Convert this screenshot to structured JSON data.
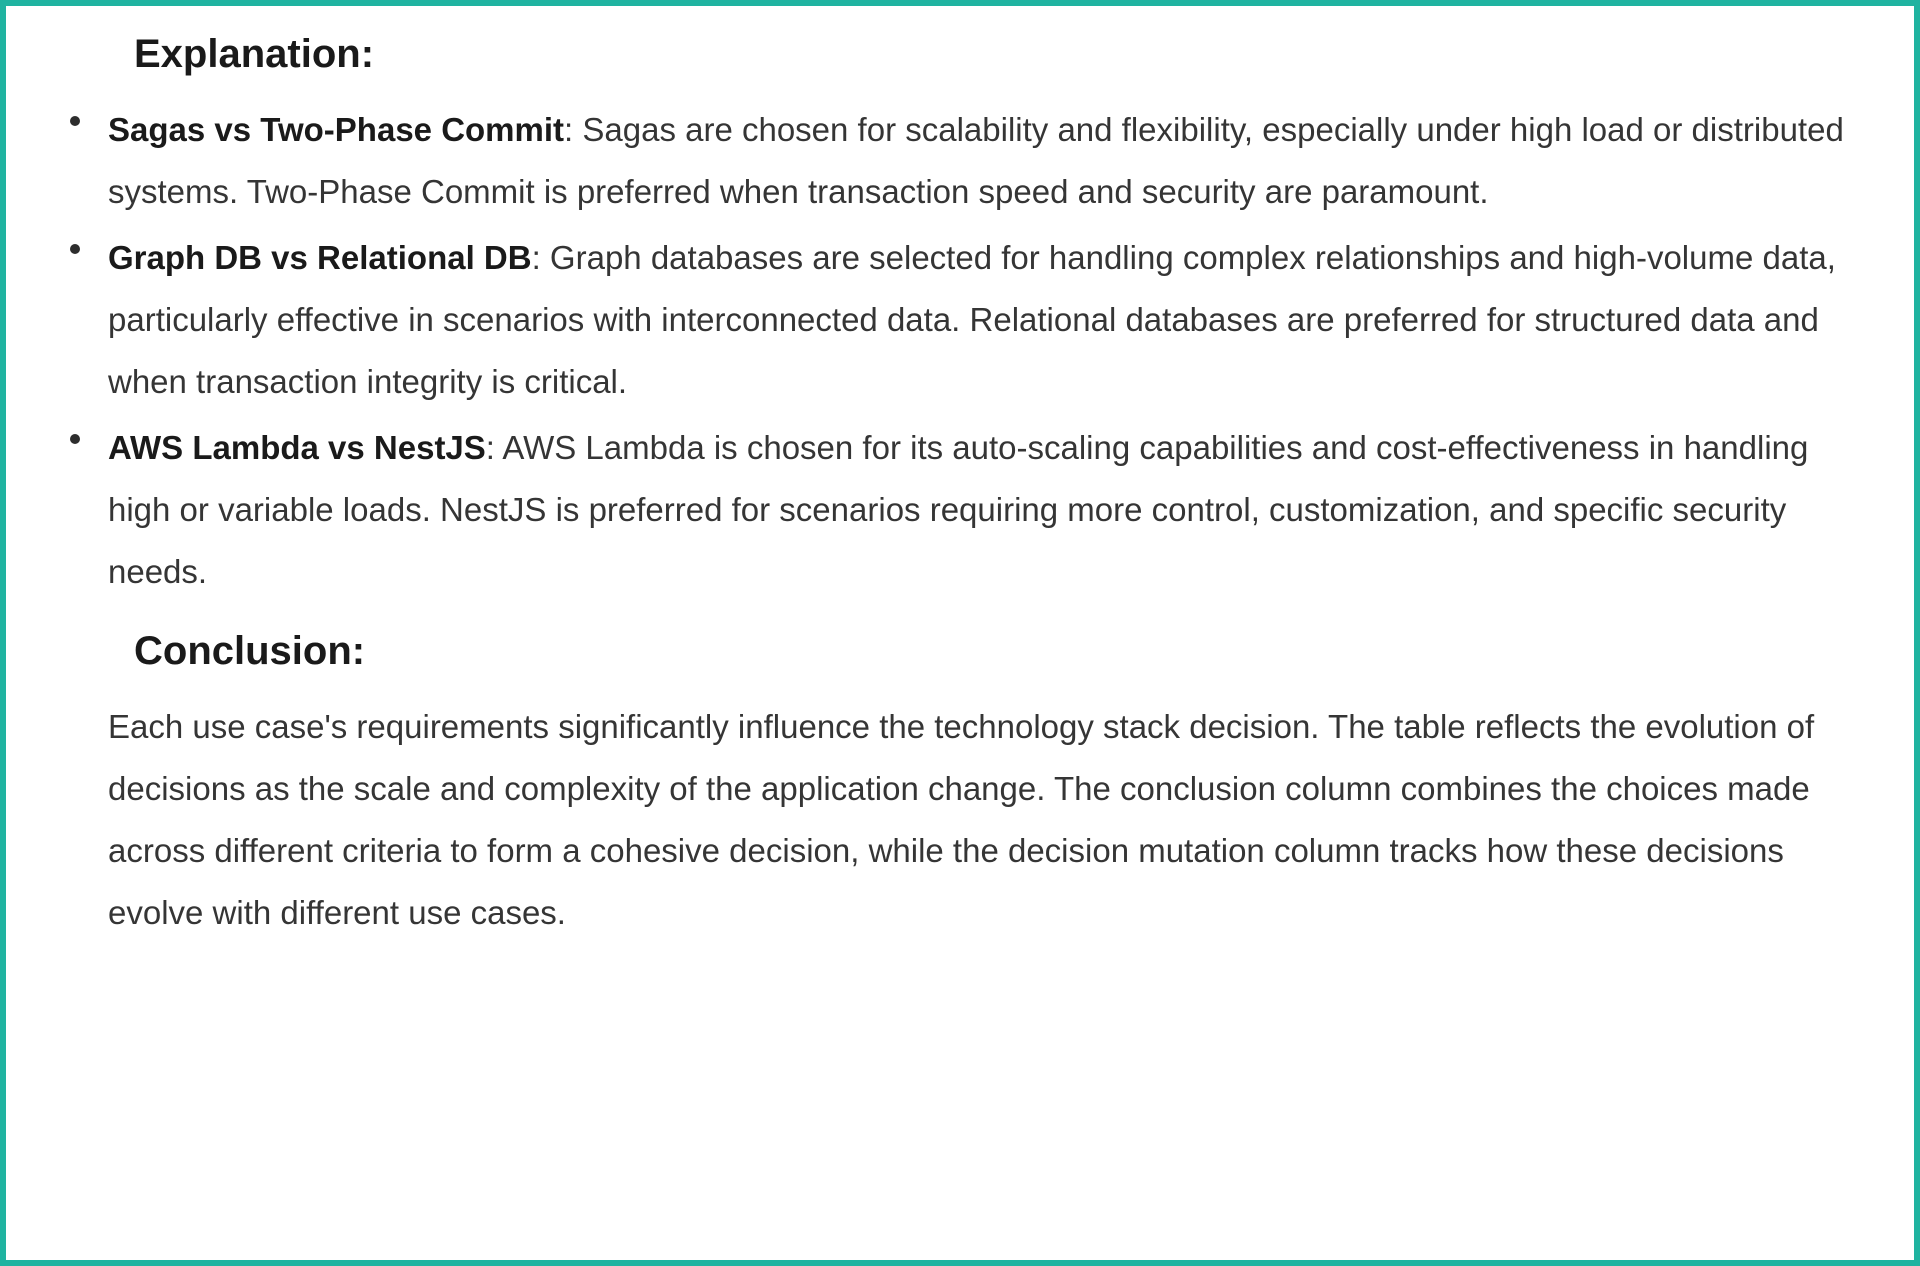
{
  "border_color": "#1fb3a0",
  "text_color": "#2d2d2d",
  "heading_fontsize_pt": 30,
  "body_fontsize_pt": 25,
  "line_height": 1.88,
  "sections": {
    "explanation": {
      "heading": "Explanation:",
      "items": [
        {
          "term": "Sagas vs Two-Phase Commit",
          "body": ": Sagas are chosen for scalability and flexibility, especially under high load or distributed systems. Two-Phase Commit is preferred when transaction speed and security are paramount."
        },
        {
          "term": "Graph DB vs Relational DB",
          "body": ": Graph databases are selected for handling complex relationships and high-volume data, particularly effective in scenarios with interconnected data. Relational databases are preferred for structured data and when transaction integrity is critical."
        },
        {
          "term": "AWS Lambda vs NestJS",
          "body": ": AWS Lambda is chosen for its auto-scaling capabilities and cost-effectiveness in handling high or variable loads. NestJS is preferred for scenarios requiring more control, customization, and specific security needs."
        }
      ]
    },
    "conclusion": {
      "heading": "Conclusion:",
      "body": "Each use case's requirements significantly influence the technology stack decision. The table reflects the evolution of decisions as the scale and complexity of the application change. The conclusion column combines the choices made across different criteria to form a cohesive decision, while the decision mutation column tracks how these decisions evolve with different use cases."
    }
  }
}
